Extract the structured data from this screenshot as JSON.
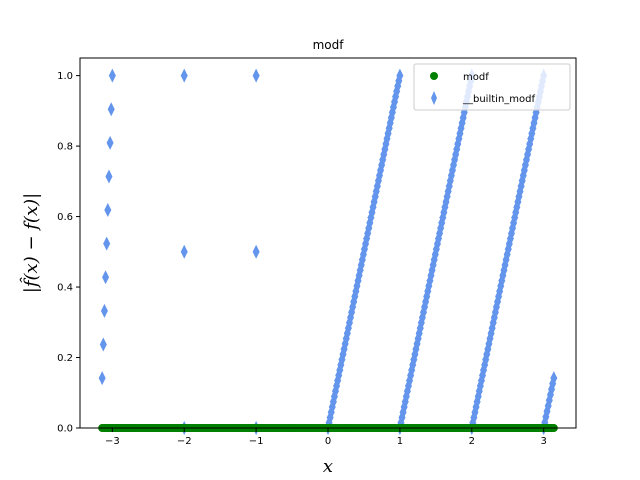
{
  "chart_data": {
    "type": "scatter",
    "title": "modf",
    "xlabel": "x",
    "ylabel": "|f̂(x) − f(x)|",
    "xlim": [
      -3.45,
      3.45
    ],
    "ylim": [
      0,
      1.05
    ],
    "xticks": [
      -3,
      -2,
      -1,
      0,
      1,
      2,
      3
    ],
    "xtick_labels": [
      "−3",
      "−2",
      "−1",
      "0",
      "1",
      "2",
      "3"
    ],
    "yticks": [
      0.0,
      0.2,
      0.4,
      0.6,
      0.8,
      1.0
    ],
    "ytick_labels": [
      "0.0",
      "0.2",
      "0.4",
      "0.6",
      "0.8",
      "1.0"
    ],
    "grid": false,
    "legend_position": "upper right",
    "x_range": [
      -3.14159,
      3.14159
    ],
    "series": [
      {
        "name": "modf",
        "marker": "circle",
        "color": "#008000",
        "description": "error is 0 for all x",
        "points": [
          [
            -3.14159,
            0
          ],
          [
            3.14159,
            0
          ]
        ]
      },
      {
        "name": "__builtin_modf",
        "marker": "thin_diamond",
        "color": "#6495ED",
        "description": "error = |x − nearest integer toward −inf| pattern (fractional-part discrepancy)",
        "points": [
          [
            -3.14159,
            0.14159
          ],
          [
            -3.0,
            1.0
          ],
          [
            -2.0,
            0.0
          ],
          [
            -2.0,
            1.0
          ],
          [
            -1.0,
            0.0
          ],
          [
            -1.0,
            1.0
          ],
          [
            0.0,
            0.0
          ],
          [
            1.0,
            1.0
          ],
          [
            1.0,
            0.0
          ],
          [
            2.0,
            1.0
          ],
          [
            2.0,
            0.0
          ],
          [
            3.0,
            1.0
          ],
          [
            3.0,
            0.0
          ],
          [
            3.14159,
            0.14159
          ]
        ]
      }
    ]
  }
}
